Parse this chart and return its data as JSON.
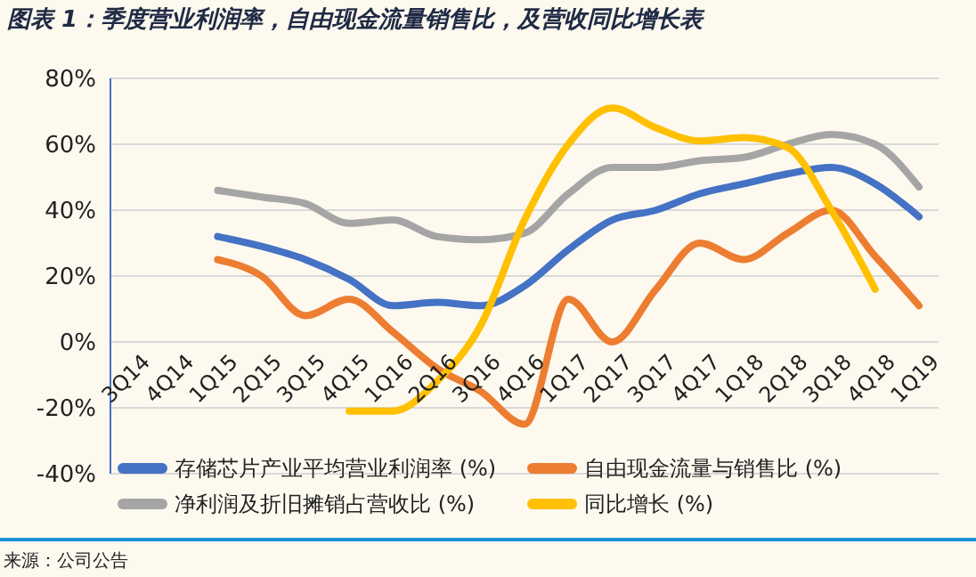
{
  "chart_data": {
    "type": "line",
    "title": "图表 1：季度营业利润率，自由现金流量销售比，及营收同比增长表",
    "categories": [
      "3Q14",
      "4Q14",
      "1Q15",
      "2Q15",
      "3Q15",
      "4Q15",
      "1Q16",
      "2Q16",
      "3Q16",
      "4Q16",
      "1Q17",
      "2Q17",
      "3Q17",
      "4Q17",
      "1Q18",
      "2Q18",
      "3Q18",
      "4Q18",
      "1Q19"
    ],
    "series": [
      {
        "name": "存储芯片产业平均营业利润率 (%)",
        "color": "#4472c4",
        "values": [
          null,
          null,
          32,
          29,
          25,
          19,
          11,
          12,
          11,
          17,
          28,
          37,
          40,
          45,
          48,
          51,
          53,
          48,
          38
        ]
      },
      {
        "name": "自由现金流量与销售比 (%)",
        "color": "#ed7d31",
        "values": [
          null,
          null,
          25,
          20,
          8,
          13,
          3,
          -8,
          -15,
          -25,
          13,
          0,
          16,
          30,
          25,
          33,
          40,
          26,
          11
        ]
      },
      {
        "name": "净利润及折旧摊销占营收比 (%)",
        "color": "#a5a5a5",
        "values": [
          null,
          null,
          46,
          44,
          42,
          36,
          37,
          32,
          31,
          33,
          45,
          53,
          53,
          55,
          56,
          60,
          63,
          60,
          47
        ]
      },
      {
        "name": "同比增长 (%)",
        "color": "#ffc000",
        "values": [
          null,
          null,
          null,
          null,
          null,
          -21,
          -21,
          -12,
          5,
          37,
          60,
          71,
          65,
          61,
          62,
          59,
          40,
          16,
          null
        ]
      }
    ],
    "ylim": [
      -40,
      80
    ],
    "yticks": [
      {
        "value": -40,
        "label": "-40%"
      },
      {
        "value": -20,
        "label": "-20%"
      },
      {
        "value": 0,
        "label": "0%"
      },
      {
        "value": 20,
        "label": "20%"
      },
      {
        "value": 40,
        "label": "40%"
      },
      {
        "value": 60,
        "label": "60%"
      },
      {
        "value": 80,
        "label": "80%"
      }
    ],
    "grid": "y",
    "legend": "bottom",
    "marker": "none",
    "line_style": "solid",
    "annotations": [
      "来源：公司公告"
    ]
  }
}
